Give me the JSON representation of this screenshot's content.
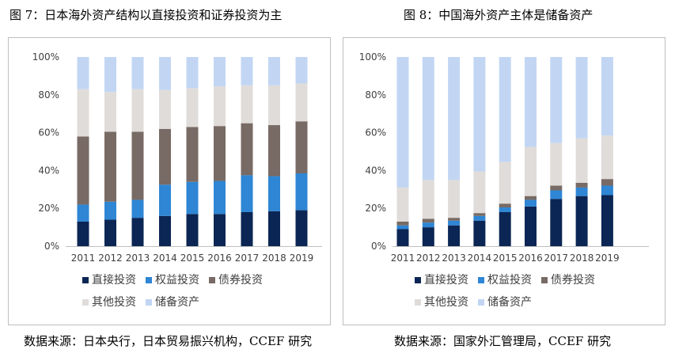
{
  "figure_left": {
    "title": "图 7：日本海外资产结构以直接投资和证券投资为主",
    "source": "数据来源：日本央行，日本贸易振兴机构，CCEF 研究"
  },
  "figure_right": {
    "title": "图 8：中国海外资产主体是储备资产",
    "source": "数据来源：国家外汇管理局，CCEF 研究"
  },
  "chart_data": [
    {
      "type": "bar",
      "stacked": true,
      "percent_stacked": true,
      "categories": [
        "2011",
        "2012",
        "2013",
        "2014",
        "2015",
        "2016",
        "2017",
        "2018",
        "2019"
      ],
      "ylim": [
        0,
        100
      ],
      "yticks": [
        "0%",
        "20%",
        "40%",
        "60%",
        "80%",
        "100%"
      ],
      "grid": false,
      "legend_position": "bottom",
      "series": [
        {
          "name": "直接投资",
          "color": "#0b2654",
          "values": [
            13,
            14,
            15,
            16,
            17,
            17,
            18,
            18.5,
            19
          ]
        },
        {
          "name": "权益投资",
          "color": "#2e86d4",
          "values": [
            9,
            9.5,
            9.5,
            16.5,
            17,
            17.5,
            19.5,
            18.5,
            19.5
          ]
        },
        {
          "name": "债券投资",
          "color": "#786a64",
          "values": [
            36,
            37,
            36,
            29.5,
            29,
            29,
            27.5,
            27,
            27.5
          ]
        },
        {
          "name": "其他投资",
          "color": "#e0dcd9",
          "values": [
            25,
            21,
            22.5,
            20.5,
            20.5,
            21,
            20,
            21,
            20
          ]
        },
        {
          "name": "储备资产",
          "color": "#c2d6f4",
          "values": [
            17,
            18.5,
            17,
            17.5,
            16.5,
            15.5,
            15,
            15,
            14
          ]
        }
      ]
    },
    {
      "type": "bar",
      "stacked": true,
      "percent_stacked": true,
      "categories": [
        "2011",
        "2012",
        "2013",
        "2014",
        "2015",
        "2016",
        "2017",
        "2018",
        "2019"
      ],
      "ylim": [
        0,
        100
      ],
      "yticks": [
        "0%",
        "20%",
        "40%",
        "60%",
        "80%",
        "100%"
      ],
      "grid": false,
      "legend_position": "bottom",
      "series": [
        {
          "name": "直接投资",
          "color": "#0b2654",
          "values": [
            9,
            10,
            11,
            13.5,
            18,
            21,
            25,
            26.5,
            27
          ]
        },
        {
          "name": "权益投资",
          "color": "#2e86d4",
          "values": [
            2,
            2.5,
            2.5,
            2.5,
            2.5,
            3.5,
            4.5,
            4.5,
            5
          ]
        },
        {
          "name": "债券投资",
          "color": "#786a64",
          "values": [
            2,
            2,
            1.5,
            1.5,
            2,
            2,
            2.5,
            2.5,
            3.5
          ]
        },
        {
          "name": "其他投资",
          "color": "#e0dcd9",
          "values": [
            18,
            20.5,
            20,
            22,
            22,
            26,
            22.5,
            23.5,
            23
          ]
        },
        {
          "name": "储备资产",
          "color": "#c2d6f4",
          "values": [
            69,
            65,
            65,
            60.5,
            55.5,
            47.5,
            45.5,
            43,
            41.5
          ]
        }
      ]
    }
  ]
}
